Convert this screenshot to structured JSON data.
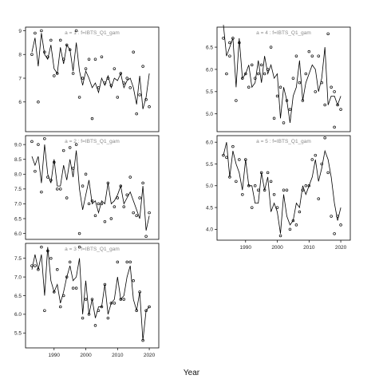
{
  "chart_data": {
    "type": "line",
    "xlabel": "Year",
    "grid": false,
    "panels": [
      {
        "label": "a = 1  :  f=IBTS_Q1_gam",
        "xlim": [
          1981,
          2023
        ],
        "ylim": [
          4.75,
          9.15
        ],
        "yticks": [
          6,
          7,
          8,
          9
        ],
        "show_x_ticks": false,
        "x": [
          1983,
          1984,
          1985,
          1986,
          1987,
          1988,
          1989,
          1990,
          1991,
          1992,
          1993,
          1994,
          1995,
          1996,
          1997,
          1998,
          1999,
          2000,
          2001,
          2002,
          2003,
          2004,
          2005,
          2006,
          2007,
          2008,
          2009,
          2010,
          2011,
          2012,
          2013,
          2014,
          2015,
          2016,
          2017,
          2018,
          2019,
          2020
        ],
        "fitted": [
          8.1,
          8.7,
          7.5,
          8.9,
          8.0,
          7.8,
          8.4,
          7.4,
          7.2,
          8.3,
          7.6,
          8.4,
          8.2,
          7.3,
          8.5,
          7.3,
          6.7,
          7.3,
          7.0,
          6.6,
          6.8,
          6.4,
          7.0,
          6.7,
          7.1,
          6.6,
          7.0,
          6.9,
          7.2,
          6.6,
          6.9,
          7.0,
          6.6,
          5.9,
          7.1,
          5.7,
          6.2,
          7.2
        ],
        "observed": [
          8.0,
          8.9,
          6.0,
          9.0,
          8.1,
          7.9,
          8.6,
          7.1,
          7.2,
          8.6,
          7.8,
          8.4,
          8.2,
          7.2,
          9.0,
          6.2,
          7.0,
          7.4,
          7.8,
          5.3,
          7.8,
          6.6,
          7.9,
          6.8,
          7.0,
          6.7,
          7.4,
          6.2,
          7.2,
          6.8,
          7.0,
          6.6,
          8.1,
          5.5,
          6.3,
          7.5,
          6.1,
          5.8
        ],
        "observed_extra_x": [],
        "observed_extra": []
      },
      {
        "label": "a = 2  :  f=IBTS_Q1_gam",
        "xlim": [
          1981,
          2023
        ],
        "ylim": [
          5.8,
          9.3
        ],
        "yticks": [
          6.0,
          6.5,
          7.0,
          7.5,
          8.0,
          8.5,
          9.0
        ],
        "show_x_ticks": false,
        "x": [
          1983,
          1984,
          1985,
          1986,
          1987,
          1988,
          1989,
          1990,
          1991,
          1992,
          1993,
          1994,
          1995,
          1996,
          1997,
          1998,
          1999,
          2000,
          2001,
          2002,
          2003,
          2004,
          2005,
          2006,
          2007,
          2008,
          2009,
          2010,
          2011,
          2012,
          2013,
          2014,
          2015,
          2016,
          2017,
          2018,
          2019,
          2020
        ],
        "fitted": [
          8.6,
          8.3,
          8.6,
          7.7,
          9.0,
          8.0,
          7.7,
          8.5,
          7.6,
          7.6,
          8.3,
          7.8,
          8.5,
          7.9,
          8.8,
          7.5,
          6.8,
          7.3,
          7.8,
          7.0,
          7.1,
          6.7,
          7.1,
          7.0,
          7.7,
          7.0,
          7.1,
          7.3,
          7.6,
          7.0,
          7.2,
          7.4,
          7.1,
          6.8,
          6.5,
          7.6,
          6.1,
          6.6
        ],
        "observed": [
          9.1,
          8.1,
          9.0,
          7.4,
          9.2,
          7.9,
          7.8,
          8.4,
          7.5,
          7.5,
          8.8,
          7.2,
          8.9,
          8.2,
          9.0,
          6.0,
          7.6,
          8.0,
          7.0,
          7.1,
          6.6,
          7.0,
          7.0,
          6.4,
          7.7,
          6.5,
          6.9,
          7.2,
          7.6,
          6.9,
          7.3,
          7.9,
          6.7,
          6.6,
          7.2,
          7.7,
          5.9,
          6.7
        ],
        "observed_extra_x": [],
        "observed_extra": []
      },
      {
        "label": "a = 3  :  f=IBTS_Q1_gam",
        "xlim": [
          1981,
          2023
        ],
        "ylim": [
          5.1,
          7.9
        ],
        "yticks": [
          5.5,
          6.0,
          6.5,
          7.0,
          7.5
        ],
        "show_x_ticks": true,
        "xticks": [
          1990,
          2000,
          2010,
          2020
        ],
        "x": [
          1983,
          1984,
          1985,
          1986,
          1987,
          1988,
          1989,
          1990,
          1991,
          1992,
          1993,
          1994,
          1995,
          1996,
          1997,
          1998,
          1999,
          2000,
          2001,
          2002,
          2003,
          2004,
          2005,
          2006,
          2007,
          2008,
          2009,
          2010,
          2011,
          2012,
          2013,
          2014,
          2015,
          2016,
          2017,
          2018,
          2019,
          2020
        ],
        "fitted": [
          7.2,
          7.6,
          7.2,
          7.6,
          6.5,
          7.8,
          6.9,
          6.6,
          6.8,
          6.3,
          6.6,
          7.0,
          7.3,
          6.9,
          7.0,
          7.5,
          6.0,
          6.9,
          6.0,
          6.4,
          5.9,
          6.2,
          6.2,
          6.8,
          6.0,
          6.3,
          6.4,
          7.0,
          6.4,
          6.5,
          7.0,
          7.3,
          6.4,
          6.1,
          6.6,
          5.3,
          6.1,
          6.2
        ],
        "observed": [
          7.3,
          7.3,
          7.2,
          7.8,
          6.1,
          7.7,
          7.5,
          6.6,
          7.2,
          6.2,
          6.5,
          7.0,
          7.4,
          6.7,
          6.7,
          7.8,
          5.9,
          6.4,
          6.0,
          6.4,
          5.7,
          6.1,
          6.2,
          6.8,
          5.9,
          6.3,
          6.3,
          7.4,
          6.4,
          6.4,
          7.4,
          7.4,
          6.9,
          6.1,
          6.6,
          5.3,
          6.1,
          6.2
        ],
        "observed_extra_x": [],
        "observed_extra": []
      },
      {
        "label": "a = 4  :  f=IBTS_Q1_gam",
        "xlim": [
          1981,
          2023
        ],
        "ylim": [
          4.6,
          6.95
        ],
        "yticks": [
          5.0,
          5.5,
          6.0,
          6.5
        ],
        "show_x_ticks": false,
        "x": [
          1983,
          1984,
          1985,
          1986,
          1987,
          1988,
          1989,
          1990,
          1991,
          1992,
          1993,
          1994,
          1995,
          1996,
          1997,
          1998,
          1999,
          2000,
          2001,
          2002,
          2003,
          2004,
          2005,
          2006,
          2007,
          2008,
          2009,
          2010,
          2011,
          2012,
          2013,
          2014,
          2015,
          2016,
          2017,
          2018,
          2019,
          2020
        ],
        "fitted": [
          7.0,
          6.3,
          6.5,
          6.7,
          5.6,
          6.7,
          5.8,
          5.9,
          6.1,
          5.6,
          5.7,
          6.2,
          5.7,
          6.3,
          5.9,
          6.1,
          5.8,
          5.9,
          4.9,
          5.6,
          5.3,
          4.8,
          5.4,
          5.6,
          6.2,
          5.3,
          5.7,
          5.9,
          6.1,
          6.0,
          5.5,
          5.8,
          6.5,
          5.2,
          5.4,
          5.4,
          5.2,
          5.4
        ],
        "observed": [
          6.7,
          5.9,
          6.6,
          6.7,
          5.3,
          6.6,
          5.8,
          5.9,
          5.6,
          6.1,
          5.8,
          5.9,
          6.1,
          5.9,
          6.0,
          6.5,
          4.9,
          5.4,
          5.6,
          4.8,
          5.3,
          5.1,
          5.8,
          6.3,
          5.7,
          5.3,
          5.9,
          6.4,
          6.3,
          5.5,
          6.3,
          5.7,
          5.2,
          6.8,
          5.6,
          5.5,
          5.2,
          5.1
        ],
        "observed_extra_x": [
          1985,
          2018
        ],
        "observed_extra": [
          6.3,
          4.7
        ]
      },
      {
        "label": "a = 5  :  f=IBTS_Q1_gam",
        "xlim": [
          1981,
          2023
        ],
        "ylim": [
          3.75,
          6.15
        ],
        "yticks": [
          4.0,
          4.5,
          5.0,
          5.5,
          6.0
        ],
        "show_x_ticks": true,
        "xticks": [
          1990,
          2000,
          2010,
          2020
        ],
        "x": [
          1983,
          1984,
          1985,
          1986,
          1987,
          1988,
          1989,
          1990,
          1991,
          1992,
          1993,
          1994,
          1995,
          1996,
          1997,
          1998,
          1999,
          2000,
          2001,
          2002,
          2003,
          2004,
          2005,
          2006,
          2007,
          2008,
          2009,
          2010,
          2011,
          2012,
          2013,
          2014,
          2015,
          2016,
          2017,
          2018,
          2019,
          2020
        ],
        "fitted": [
          5.7,
          6.0,
          5.2,
          5.8,
          5.5,
          5.3,
          4.9,
          5.6,
          5.0,
          5.0,
          4.6,
          4.6,
          5.3,
          4.9,
          5.2,
          4.4,
          4.6,
          4.4,
          3.9,
          4.8,
          4.3,
          4.1,
          4.2,
          4.6,
          4.5,
          5.0,
          4.8,
          5.0,
          5.2,
          5.6,
          5.1,
          5.4,
          5.8,
          5.6,
          5.2,
          4.6,
          4.2,
          4.5
        ],
        "observed": [
          5.7,
          5.65,
          5.2,
          5.9,
          5.1,
          5.6,
          4.8,
          5.6,
          5.0,
          4.5,
          5.0,
          4.9,
          5.3,
          4.9,
          5.3,
          5.1,
          4.8,
          4.5,
          3.85,
          4.9,
          4.9,
          4.0,
          4.2,
          4.1,
          4.4,
          4.9,
          5.0,
          5.0,
          5.6,
          5.7,
          4.7,
          5.5,
          6.1,
          5.3,
          4.3,
          3.9,
          4.3,
          4.1
        ],
        "observed_extra_x": [],
        "observed_extra": []
      }
    ]
  }
}
